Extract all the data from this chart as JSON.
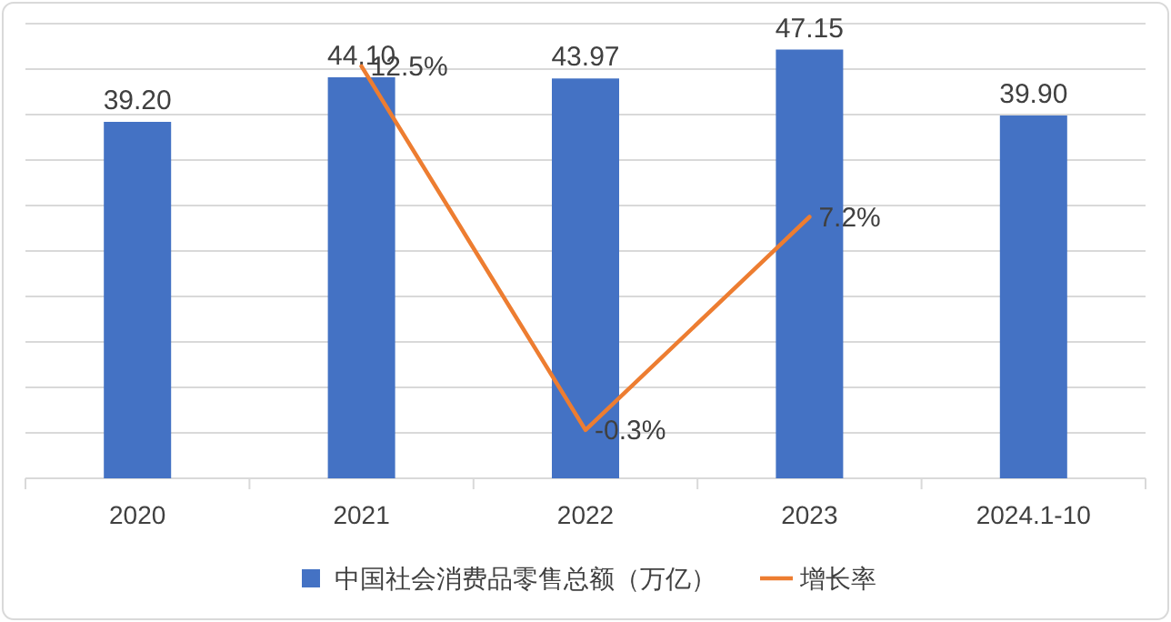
{
  "chart_data": {
    "type": "bar",
    "categories": [
      "2020",
      "2021",
      "2022",
      "2023",
      "2024.1-10"
    ],
    "series": [
      {
        "name": "中国社会消费品零售总额（万亿）",
        "color": "#4472c4",
        "values": [
          39.2,
          44.1,
          43.97,
          47.15,
          39.9
        ],
        "value_labels": [
          "39.20",
          "44.10",
          "43.97",
          "47.15",
          "39.90"
        ]
      },
      {
        "name": "增长率",
        "type": "line",
        "axis": "y2",
        "color": "#ed7d31",
        "values": [
          null,
          12.5,
          -0.3,
          7.2,
          null
        ],
        "value_labels": [
          null,
          "12.5%",
          "-0.3%",
          "7.2%",
          null
        ]
      }
    ],
    "ylim": [
      0,
      50
    ],
    "yticks": [
      {
        "value": 0,
        "label": null
      },
      {
        "value": 5,
        "label": null
      },
      {
        "value": 10,
        "label": null
      },
      {
        "value": 15,
        "label": null
      },
      {
        "value": 20,
        "label": null
      },
      {
        "value": 25,
        "label": null
      },
      {
        "value": 30,
        "label": null
      },
      {
        "value": 35,
        "label": null
      },
      {
        "value": 40,
        "label": null
      },
      {
        "value": 45,
        "label": null
      },
      {
        "value": 50,
        "label": null
      }
    ],
    "y2lim": [
      -2,
      14
    ],
    "grid": "y",
    "legend": "bottom",
    "tick_labels": "x",
    "marker": "none",
    "line_style": "solid"
  }
}
